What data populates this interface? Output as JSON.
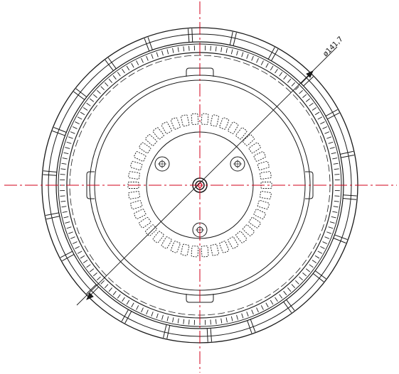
{
  "drawing": {
    "diameter_label": "ø141,7",
    "line_color": "#1a1a1a",
    "centerline_color": "#d0021b"
  }
}
